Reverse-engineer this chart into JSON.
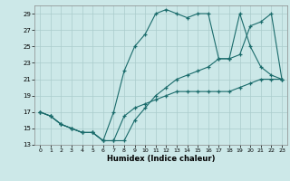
{
  "xlabel": "Humidex (Indice chaleur)",
  "bg_color": "#cce8e8",
  "grid_color": "#aacccc",
  "line_color": "#1a6b6b",
  "xlim": [
    -0.5,
    23.5
  ],
  "ylim": [
    13,
    30
  ],
  "xticks": [
    0,
    1,
    2,
    3,
    4,
    5,
    6,
    7,
    8,
    9,
    10,
    11,
    12,
    13,
    14,
    15,
    16,
    17,
    18,
    19,
    20,
    21,
    22,
    23
  ],
  "yticks": [
    13,
    15,
    17,
    19,
    21,
    23,
    25,
    27,
    29
  ],
  "line1_x": [
    0,
    1,
    2,
    3,
    4,
    5,
    6,
    7,
    8,
    9,
    10,
    11,
    12,
    13,
    14,
    15,
    16,
    17,
    18,
    19,
    20,
    21,
    22,
    23
  ],
  "line1_y": [
    17,
    16.5,
    15.5,
    15,
    14.5,
    14.5,
    13.5,
    13.5,
    16.5,
    17.5,
    18,
    18.5,
    19,
    19.5,
    19.5,
    19.5,
    19.5,
    19.5,
    19.5,
    20,
    20.5,
    21,
    21,
    21
  ],
  "line2_x": [
    0,
    1,
    2,
    3,
    4,
    5,
    6,
    7,
    8,
    9,
    10,
    11,
    12,
    13,
    14,
    15,
    16,
    17,
    18,
    19,
    20,
    21,
    22,
    23
  ],
  "line2_y": [
    17,
    16.5,
    15.5,
    15,
    14.5,
    14.5,
    13.5,
    17,
    22,
    25,
    26.5,
    29,
    29.5,
    29,
    28.5,
    29,
    29,
    23.5,
    23.5,
    29,
    25,
    22.5,
    21.5,
    21
  ],
  "line3_x": [
    0,
    1,
    2,
    3,
    4,
    5,
    6,
    7,
    8,
    9,
    10,
    11,
    12,
    13,
    14,
    15,
    16,
    17,
    18,
    19,
    20,
    21,
    22,
    23
  ],
  "line3_y": [
    17,
    16.5,
    15.5,
    15,
    14.5,
    14.5,
    13.5,
    13.5,
    13.5,
    16,
    17.5,
    19,
    20,
    21,
    21.5,
    22,
    22.5,
    23.5,
    23.5,
    24,
    27.5,
    28,
    29,
    21
  ]
}
